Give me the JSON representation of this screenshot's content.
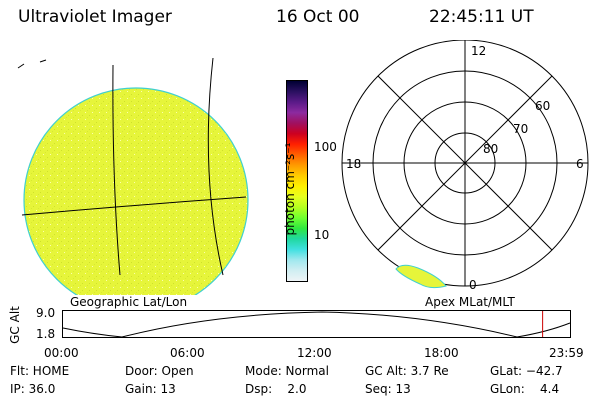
{
  "header": {
    "title": "Ultraviolet Imager",
    "date": "16 Oct 00",
    "time": "22:45:11 UT"
  },
  "colorbar": {
    "unit_label": "photon cm⁻²s⁻¹",
    "ticks": [
      "100",
      "10"
    ],
    "colors_top_to_bottom": [
      "#000033",
      "#2a1060",
      "#5a1a88",
      "#8c2aa0",
      "#a01060",
      "#cc0020",
      "#ff2000",
      "#ff6000",
      "#ff9a00",
      "#ffcc00",
      "#fff000",
      "#e6ff20",
      "#b4ff20",
      "#70ff30",
      "#30e840",
      "#20d8a0",
      "#40e0e0",
      "#a0e8ee",
      "#d0eef2",
      "#eef4f6"
    ]
  },
  "left_panel": {
    "caption": "Geographic Lat/Lon",
    "fill_color": "#e6f53a"
  },
  "right_panel": {
    "caption": "Apex MLat/MLT",
    "mlt_labels": {
      "top": "12",
      "left": "18",
      "right": "6",
      "bottom": "0"
    },
    "mlat_labels": [
      "60",
      "70",
      "80"
    ]
  },
  "timeline": {
    "ylabel": "GC Alt",
    "ytop": "9.0",
    "ybottom": "1.8",
    "xticks": [
      "00:00",
      "06:00",
      "12:00",
      "18:00",
      "23:59"
    ],
    "current_time_fraction": 0.946
  },
  "status": {
    "flt_label": "Flt: HOME",
    "ip_label": "IP: 36.0",
    "door_label": "Door: Open",
    "gain_label": "Gain: 13",
    "mode_label": "Mode: Normal",
    "dsp_label": "Dsp:    2.0",
    "gcalt_label": "GC Alt: 3.7 Re",
    "seq_label": "Seq: 13",
    "glat_label": "GLat: −42.7",
    "glon_label": "GLon:    4.4"
  }
}
